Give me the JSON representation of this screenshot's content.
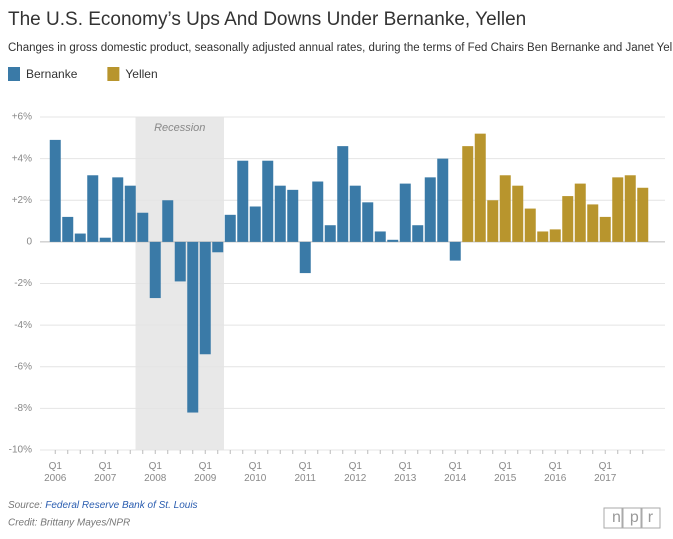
{
  "chart_data": {
    "type": "bar",
    "title": "The U.S. Economy’s Ups And Downs Under Bernanke, Yellen",
    "subtitle": "Changes in gross domestic product, seasonally adjusted annual rates, during the terms of Fed Chairs Ben Bernanke and Janet Yellen",
    "categories": [
      "Q1 2006",
      null,
      null,
      null,
      "Q1 2007",
      null,
      null,
      null,
      "Q1 2008",
      null,
      null,
      null,
      "Q1 2009",
      null,
      null,
      null,
      "Q1 2010",
      null,
      null,
      null,
      "Q1 2011",
      null,
      null,
      null,
      "Q1 2012",
      null,
      null,
      null,
      "Q1 2013",
      null,
      null,
      null,
      "Q1 2014",
      null,
      null,
      null,
      "Q1 2015",
      null,
      null,
      null,
      "Q1 2016",
      null,
      null,
      null,
      "Q1 2017",
      null,
      null,
      null
    ],
    "series": [
      {
        "name": "Bernanke",
        "color": "#3a7aa7",
        "values": [
          4.9,
          1.2,
          0.4,
          3.2,
          0.2,
          3.1,
          2.7,
          1.4,
          -2.7,
          2.0,
          -1.9,
          -8.2,
          -5.4,
          -0.5,
          1.3,
          3.9,
          1.7,
          3.9,
          2.7,
          2.5,
          -1.5,
          2.9,
          0.8,
          4.6,
          2.7,
          1.9,
          0.5,
          0.1,
          2.8,
          0.8,
          3.1,
          4.0,
          -0.9,
          null,
          null,
          null,
          null,
          null,
          null,
          null,
          null,
          null,
          null,
          null,
          null,
          null,
          null,
          null
        ]
      },
      {
        "name": "Yellen",
        "color": "#b8952d",
        "values": [
          null,
          null,
          null,
          null,
          null,
          null,
          null,
          null,
          null,
          null,
          null,
          null,
          null,
          null,
          null,
          null,
          null,
          null,
          null,
          null,
          null,
          null,
          null,
          null,
          null,
          null,
          null,
          null,
          null,
          null,
          null,
          null,
          null,
          4.6,
          5.2,
          2.0,
          3.2,
          2.7,
          1.6,
          0.5,
          0.6,
          2.2,
          2.8,
          1.8,
          1.2,
          3.1,
          3.2,
          2.6
        ]
      }
    ],
    "ylim": [
      -10,
      6
    ],
    "yticks": [
      {
        "value": 6,
        "label": "+6%"
      },
      {
        "value": 4,
        "label": "+4%"
      },
      {
        "value": 2,
        "label": "+2%"
      },
      0,
      {
        "value": -2,
        "label": "-2%"
      },
      {
        "value": -4,
        "label": "-4%"
      },
      {
        "value": -6,
        "label": "-6%"
      },
      {
        "value": -8,
        "label": "-8%"
      },
      {
        "value": -10,
        "label": "-10%"
      }
    ],
    "grid": true,
    "annotations": [
      {
        "text": "Recession",
        "x_start": 7,
        "x_end": 13
      }
    ],
    "source_label": "Source: ",
    "source": "Federal Reserve Bank of St. Louis",
    "credit": "Credit: Brittany Mayes/NPR",
    "logo": "npr"
  }
}
